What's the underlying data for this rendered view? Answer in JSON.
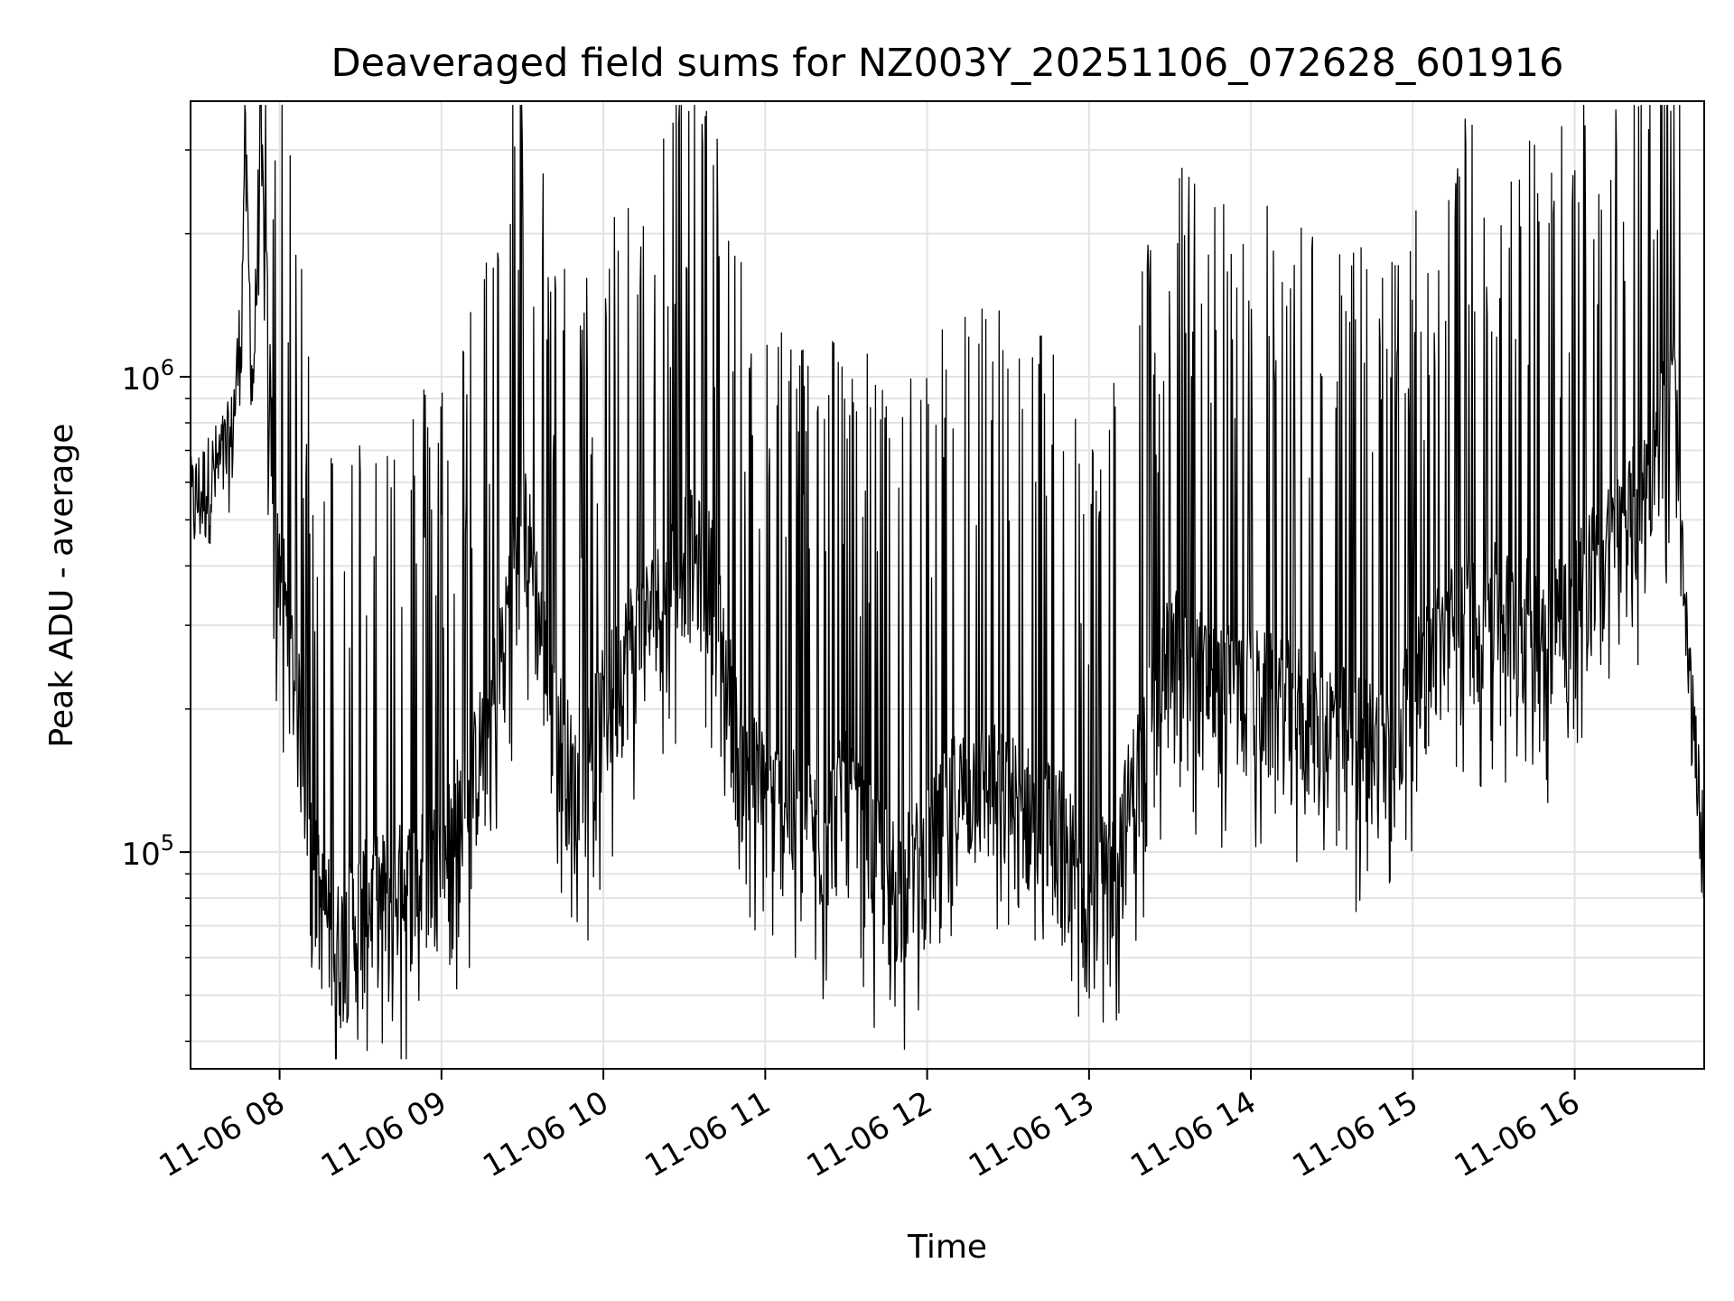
{
  "chart_data": {
    "type": "line",
    "title": "Deaveraged field sums for NZ003Y_20251106_072628_601916",
    "xlabel": "Time",
    "ylabel": "Peak ADU - average",
    "yscale": "log",
    "grid": true,
    "line_color": "#000000",
    "x_ticks": [
      "11-06 08",
      "11-06 09",
      "11-06 10",
      "11-06 11",
      "11-06 12",
      "11-06 13",
      "11-06 14",
      "11-06 15",
      "11-06 16"
    ],
    "y_tick_labels": [
      {
        "base": "10",
        "exp": "5",
        "value": 100000
      },
      {
        "base": "10",
        "exp": "6",
        "value": 1000000
      }
    ],
    "xlim": [
      "2025-11-06 07:27",
      "2025-11-06 16:48"
    ],
    "ylim": [
      35000,
      3800000
    ],
    "series": [
      {
        "points": [
          [
            "2025-11-06 07:27",
            520000
          ],
          [
            "2025-11-06 07:35",
            600000
          ],
          [
            "2025-11-06 07:42",
            700000
          ],
          [
            "2025-11-06 07:46",
            1300000
          ],
          [
            "2025-11-06 07:47",
            3200000
          ],
          [
            "2025-11-06 07:50",
            900000
          ],
          [
            "2025-11-06 07:53",
            2700000
          ],
          [
            "2025-11-06 07:58",
            500000
          ],
          [
            "2025-11-06 08:02",
            300000
          ],
          [
            "2025-11-06 08:06",
            200000
          ],
          [
            "2025-11-06 08:10",
            130000
          ],
          [
            "2025-11-06 08:14",
            75000
          ],
          [
            "2025-11-06 08:22",
            58000
          ],
          [
            "2025-11-06 08:30",
            70000
          ],
          [
            "2025-11-06 08:40",
            75000
          ],
          [
            "2025-11-06 08:50",
            80000
          ],
          [
            "2025-11-06 09:00",
            90000
          ],
          [
            "2025-11-06 09:10",
            120000
          ],
          [
            "2025-11-06 09:20",
            200000
          ],
          [
            "2025-11-06 09:30",
            500000
          ],
          [
            "2025-11-06 09:40",
            200000
          ],
          [
            "2025-11-06 09:50",
            120000
          ],
          [
            "2025-11-06 10:00",
            180000
          ],
          [
            "2025-11-06 10:10",
            250000
          ],
          [
            "2025-11-06 10:20",
            300000
          ],
          [
            "2025-11-06 10:30",
            400000
          ],
          [
            "2025-11-06 10:40",
            350000
          ],
          [
            "2025-11-06 10:50",
            150000
          ],
          [
            "2025-11-06 11:00",
            120000
          ],
          [
            "2025-11-06 11:10",
            110000
          ],
          [
            "2025-11-06 11:20",
            100000
          ],
          [
            "2025-11-06 11:30",
            120000
          ],
          [
            "2025-11-06 11:40",
            90000
          ],
          [
            "2025-11-06 11:50",
            80000
          ],
          [
            "2025-11-06 12:00",
            90000
          ],
          [
            "2025-11-06 12:10",
            120000
          ],
          [
            "2025-11-06 12:20",
            130000
          ],
          [
            "2025-11-06 12:30",
            120000
          ],
          [
            "2025-11-06 12:40",
            110000
          ],
          [
            "2025-11-06 12:50",
            100000
          ],
          [
            "2025-11-06 13:00",
            70000
          ],
          [
            "2025-11-06 13:10",
            90000
          ],
          [
            "2025-11-06 13:20",
            150000
          ],
          [
            "2025-11-06 13:30",
            250000
          ],
          [
            "2025-11-06 13:40",
            220000
          ],
          [
            "2025-11-06 13:50",
            200000
          ],
          [
            "2025-11-06 14:00",
            200000
          ],
          [
            "2025-11-06 14:10",
            190000
          ],
          [
            "2025-11-06 14:20",
            180000
          ],
          [
            "2025-11-06 14:30",
            170000
          ],
          [
            "2025-11-06 14:40",
            160000
          ],
          [
            "2025-11-06 14:50",
            150000
          ],
          [
            "2025-11-06 15:00",
            200000
          ],
          [
            "2025-11-06 15:10",
            250000
          ],
          [
            "2025-11-06 15:20",
            300000
          ],
          [
            "2025-11-06 15:30",
            300000
          ],
          [
            "2025-11-06 15:40",
            280000
          ],
          [
            "2025-11-06 15:50",
            280000
          ],
          [
            "2025-11-06 16:00",
            320000
          ],
          [
            "2025-11-06 16:10",
            380000
          ],
          [
            "2025-11-06 16:20",
            450000
          ],
          [
            "2025-11-06 16:30",
            650000
          ],
          [
            "2025-11-06 16:37",
            900000
          ],
          [
            "2025-11-06 16:39",
            450000
          ],
          [
            "2025-11-06 16:42",
            250000
          ],
          [
            "2025-11-06 16:45",
            150000
          ],
          [
            "2025-11-06 16:48",
            95000
          ]
        ]
      }
    ]
  }
}
